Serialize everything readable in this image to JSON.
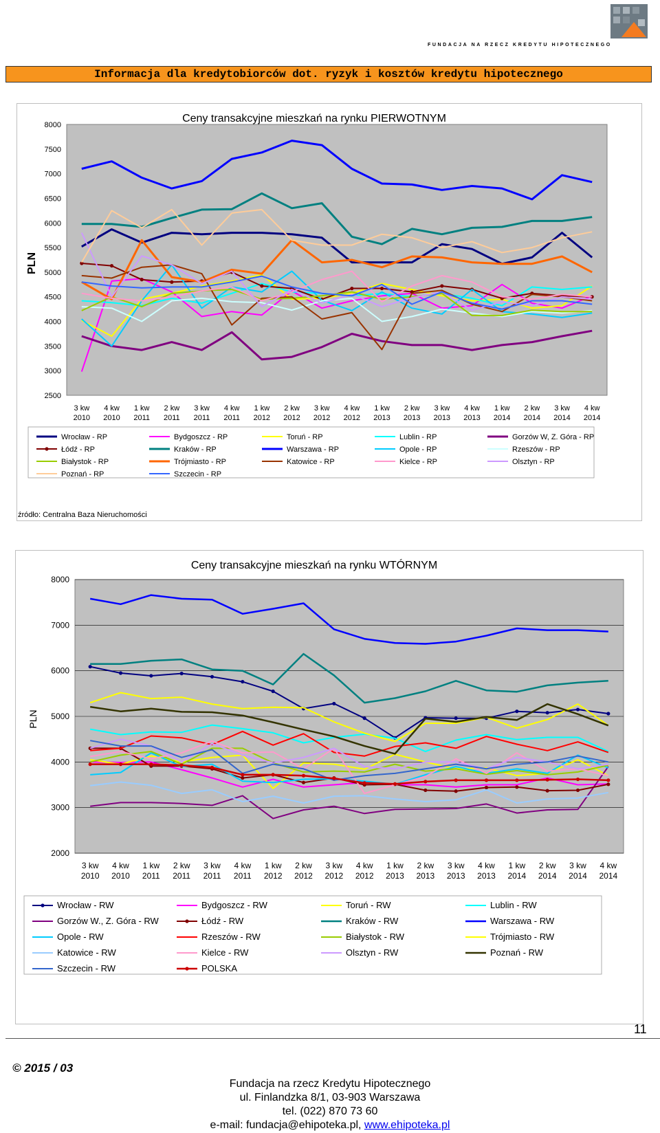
{
  "header": {
    "logo_text": "FUNDACJA NA RZECZ KREDYTU HIPOTECZNEGO",
    "banner": "Informacja dla kredytobiorców dot. ryzyk i kosztów kredytu hipotecznego"
  },
  "source_note": "źródło: Centralna Baza Nieruchomości",
  "page_number": "11",
  "footer": {
    "copyright": "© 2015 / 03",
    "org": "Fundacja na rzecz Kredytu Hipotecznego",
    "address": "ul. Finlandzka 8/1, 03-903 Warszawa",
    "phone": "tel. (022) 870 73 60",
    "email_prefix": "e-mail: fundacja@ehipoteka.pl, ",
    "website": "www.ehipoteka.pl"
  },
  "chart_data": [
    {
      "type": "line",
      "title": "Ceny transakcyjne mieszkań na rynku PIERWOTNYM",
      "ylabel": "PLN",
      "ylim": [
        2500,
        8000
      ],
      "yticks": [
        2500,
        3000,
        3500,
        4000,
        4500,
        5000,
        5500,
        6000,
        6500,
        7000,
        7500,
        8000
      ],
      "categories": [
        "3 kw 2010",
        "4 kw 2010",
        "1 kw 2011",
        "2 kw 2011",
        "3 kw 2011",
        "4 kw 2011",
        "1 kw 2012",
        "2 kw 2012",
        "3 kw 2012",
        "4 kw 2012",
        "1 kw 2013",
        "2 kw 2013",
        "3 kw 2013",
        "4 kw 2013",
        "1 kw 2014",
        "2 kw 2014",
        "3 kw 2014",
        "4 kw 2014"
      ],
      "series": [
        {
          "name": "Wrocław - RP",
          "color": "#000080",
          "values": [
            5520,
            5870,
            5600,
            5800,
            5770,
            5800,
            5800,
            5770,
            5700,
            5200,
            5200,
            5200,
            5570,
            5470,
            5170,
            5300,
            5800,
            5300
          ]
        },
        {
          "name": "Bydgoszcz - RP",
          "color": "#ff00ff",
          "values": [
            2980,
            4820,
            4870,
            4600,
            4100,
            4200,
            4130,
            4620,
            4270,
            4420,
            4520,
            4570,
            4270,
            4320,
            4750,
            4370,
            4270,
            4520
          ]
        },
        {
          "name": "Toruń - RP",
          "color": "#ffff00",
          "values": [
            4020,
            3700,
            4450,
            4570,
            4720,
            4820,
            4950,
            4450,
            4470,
            4570,
            4770,
            4650,
            4520,
            4420,
            4450,
            4270,
            4320,
            4720
          ]
        },
        {
          "name": "Lublin - RP",
          "color": "#00ffff",
          "values": [
            4420,
            4380,
            4320,
            4470,
            4370,
            4570,
            4770,
            4600,
            4570,
            4520,
            4570,
            4500,
            4570,
            4470,
            4320,
            4700,
            4650,
            4700
          ]
        },
        {
          "name": "Gorzów W, Z. Góra - RP",
          "color": "#800080",
          "values": [
            3700,
            3500,
            3420,
            3580,
            3420,
            3780,
            3230,
            3280,
            3480,
            3750,
            3600,
            3520,
            3520,
            3420,
            3520,
            3580,
            3700,
            3810
          ]
        },
        {
          "name": "Łódź - RP",
          "color": "#800000",
          "values": [
            5180,
            5130,
            4850,
            4800,
            4820,
            5000,
            4720,
            4670,
            4450,
            4670,
            4670,
            4600,
            4720,
            4650,
            4470,
            4570,
            4520,
            4500
          ]
        },
        {
          "name": "Kraków - RP",
          "color": "#008080",
          "values": [
            5980,
            5980,
            5920,
            6100,
            6270,
            6280,
            6600,
            6300,
            6400,
            5720,
            5570,
            5880,
            5770,
            5900,
            5920,
            6040,
            6040,
            6120
          ]
        },
        {
          "name": "Warszawa - RP",
          "color": "#0000ff",
          "values": [
            7100,
            7250,
            6920,
            6700,
            6850,
            7300,
            7430,
            7670,
            7580,
            7100,
            6800,
            6780,
            6670,
            6750,
            6700,
            6480,
            6970,
            6830
          ]
        },
        {
          "name": "Opole - RP",
          "color": "#00ccff",
          "values": [
            4050,
            3500,
            4420,
            5150,
            4270,
            4700,
            4600,
            5020,
            4430,
            4220,
            4600,
            4270,
            4150,
            4650,
            4200,
            4150,
            4080,
            4170
          ]
        },
        {
          "name": "Rzeszów - RP",
          "color": "#ccffff",
          "values": [
            4300,
            4270,
            4000,
            4420,
            4470,
            4400,
            4380,
            4230,
            4420,
            4470,
            4000,
            4100,
            4250,
            4170,
            4100,
            4200,
            4170,
            4220
          ]
        },
        {
          "name": "Białystok - RP",
          "color": "#99cc00",
          "values": [
            4220,
            4500,
            4300,
            4570,
            4620,
            4650,
            4450,
            4470,
            4520,
            4600,
            4450,
            4500,
            4570,
            4120,
            4120,
            4230,
            4200,
            4200
          ]
        },
        {
          "name": "Trójmiasto - RP",
          "color": "#ff6600",
          "values": [
            4800,
            4450,
            5650,
            4900,
            4800,
            5050,
            4970,
            5650,
            5200,
            5250,
            5100,
            5320,
            5300,
            5200,
            5170,
            5170,
            5320,
            5000
          ]
        },
        {
          "name": "Katowice - RP",
          "color": "#993300",
          "values": [
            4930,
            4880,
            5100,
            5150,
            4970,
            3930,
            4470,
            4500,
            4050,
            4180,
            3430,
            4570,
            4630,
            4350,
            4200,
            4550,
            4500,
            4420
          ]
        },
        {
          "name": "Kielce - RP",
          "color": "#ff99cc",
          "values": [
            4570,
            4470,
            4420,
            4500,
            4620,
            4700,
            4420,
            4600,
            4850,
            5020,
            4400,
            4720,
            4930,
            4800,
            4500,
            4450,
            4550,
            4500
          ]
        },
        {
          "name": "Olsztyn - RP",
          "color": "#cc99ff",
          "values": [
            5800,
            4500,
            5330,
            5150,
            4770,
            5020,
            4300,
            4650,
            4370,
            4550,
            4300,
            4480,
            4600,
            4230,
            4400,
            4320,
            4500,
            4450
          ]
        },
        {
          "name": "Poznań - RP",
          "color": "#ffcc99",
          "values": [
            5200,
            6250,
            5900,
            6270,
            5550,
            6200,
            6270,
            5650,
            5550,
            5550,
            5770,
            5700,
            5500,
            5620,
            5400,
            5500,
            5700,
            5820
          ]
        },
        {
          "name": "Szczecin - RP",
          "color": "#3366ff",
          "values": [
            4800,
            4720,
            4680,
            4700,
            4700,
            4800,
            4920,
            4700,
            4570,
            4520,
            4750,
            4350,
            4600,
            4370,
            4250,
            4420,
            4420,
            4350
          ]
        }
      ]
    },
    {
      "type": "line",
      "title": "Ceny transakcyjne mieszkań na rynku WTÓRNYM",
      "ylabel": "PLN",
      "ylim": [
        2000,
        8000
      ],
      "yticks": [
        2000,
        3000,
        4000,
        5000,
        6000,
        7000,
        8000
      ],
      "categories": [
        "3 kw 2010",
        "4 kw 2010",
        "1 kw 2011",
        "2 kw 2011",
        "3 kw 2011",
        "4 kw 2011",
        "1 kw 2012",
        "2 kw 2012",
        "3 kw 2012",
        "4 kw 2012",
        "1 kw 2013",
        "2 kw 2013",
        "3 kw 2013",
        "4 kw 2013",
        "1 kw 2014",
        "2 kw 2014",
        "3 kw 2014",
        "4 kw 2014"
      ],
      "series": [
        {
          "name": "Wrocław - RW",
          "color": "#000080",
          "values": [
            6090,
            5950,
            5890,
            5940,
            5870,
            5760,
            5550,
            5170,
            5280,
            4960,
            4530,
            4970,
            4960,
            4960,
            5110,
            5080,
            5150,
            5060
          ]
        },
        {
          "name": "Bydgoszcz - RW",
          "color": "#ff00ff",
          "values": [
            4000,
            3990,
            4000,
            3830,
            3650,
            3450,
            3620,
            3450,
            3500,
            3550,
            3500,
            3500,
            3450,
            3500,
            3500,
            3650,
            3500,
            3520
          ]
        },
        {
          "name": "Toruń - RW",
          "color": "#ffff00",
          "values": [
            4050,
            3950,
            4130,
            4000,
            4100,
            4150,
            3420,
            3980,
            3950,
            3840,
            4170,
            4000,
            3850,
            3870,
            3700,
            3750,
            4050,
            3700
          ]
        },
        {
          "name": "Lublin - RW",
          "color": "#00ffff",
          "values": [
            4720,
            4600,
            4660,
            4650,
            4810,
            4730,
            4640,
            4420,
            4540,
            4610,
            4520,
            4230,
            4480,
            4600,
            4490,
            4540,
            4540,
            4230
          ]
        },
        {
          "name": "Gorzów W., Z. Góra - RW",
          "color": "#800080",
          "values": [
            3030,
            3110,
            3110,
            3090,
            3050,
            3260,
            2760,
            2950,
            3030,
            2870,
            2960,
            2970,
            2980,
            3080,
            2880,
            2950,
            2960,
            3900
          ]
        },
        {
          "name": "Łódź - RW",
          "color": "#800000",
          "values": [
            4300,
            4300,
            3910,
            3910,
            3850,
            3650,
            3720,
            3550,
            3650,
            3500,
            3510,
            3380,
            3360,
            3440,
            3450,
            3370,
            3380,
            3510
          ]
        },
        {
          "name": "Kraków - RW",
          "color": "#008080",
          "values": [
            6150,
            6150,
            6220,
            6250,
            6030,
            6000,
            5700,
            6370,
            5900,
            5300,
            5400,
            5550,
            5780,
            5570,
            5540,
            5680,
            5740,
            5780
          ]
        },
        {
          "name": "Warszawa - RW",
          "color": "#0000ff",
          "values": [
            7580,
            7460,
            7660,
            7580,
            7560,
            7250,
            7360,
            7480,
            6910,
            6700,
            6610,
            6590,
            6640,
            6770,
            6930,
            6890,
            6890,
            6860
          ]
        },
        {
          "name": "Opole - RW",
          "color": "#00ccff",
          "values": [
            3720,
            3770,
            4200,
            3900,
            3950,
            3580,
            3550,
            3620,
            3630,
            3580,
            3510,
            3720,
            3900,
            3750,
            3850,
            3750,
            4150,
            3870
          ]
        },
        {
          "name": "Rzeszów - RW",
          "color": "#ff0000",
          "values": [
            4250,
            4300,
            4570,
            4530,
            4380,
            4670,
            4370,
            4620,
            4210,
            4130,
            4340,
            4420,
            4300,
            4560,
            4390,
            4250,
            4440,
            4210
          ]
        },
        {
          "name": "Białystok - RW",
          "color": "#99cc00",
          "values": [
            4000,
            4150,
            4230,
            3950,
            4300,
            4300,
            3980,
            3780,
            3800,
            3780,
            3950,
            3800,
            3850,
            3730,
            3810,
            3720,
            3780,
            3930
          ]
        },
        {
          "name": "Trójmiasto - RW",
          "color": "#ffff00",
          "values": [
            5300,
            5520,
            5390,
            5420,
            5270,
            5170,
            5200,
            5190,
            4880,
            4630,
            4450,
            4850,
            4850,
            4980,
            4740,
            4930,
            5270,
            4800
          ]
        },
        {
          "name": "Katowice - RW",
          "color": "#99ccff",
          "values": [
            3480,
            3560,
            3490,
            3310,
            3390,
            3130,
            3250,
            3100,
            3250,
            3260,
            3190,
            3130,
            3170,
            3390,
            3100,
            3190,
            3210,
            3330
          ]
        },
        {
          "name": "Kielce - RW",
          "color": "#ff99cc",
          "values": [
            4120,
            4230,
            4070,
            4200,
            4460,
            4200,
            4220,
            3850,
            4300,
            3310,
            3500,
            3680,
            4070,
            3750,
            4200,
            3800,
            3850,
            3700
          ]
        },
        {
          "name": "Olsztyn - RW",
          "color": "#cc99ff",
          "values": [
            4300,
            4500,
            4350,
            4000,
            4400,
            4150,
            3980,
            4100,
            4300,
            3900,
            3850,
            4000,
            4000,
            3850,
            4100,
            4000,
            3850,
            3950
          ]
        },
        {
          "name": "Poznań - RW",
          "color": "#333300",
          "values": [
            5210,
            5110,
            5170,
            5100,
            5090,
            5020,
            4870,
            4710,
            4560,
            4350,
            4180,
            4950,
            4880,
            4990,
            4920,
            5270,
            5050,
            4800
          ]
        },
        {
          "name": "Szczecin - RW",
          "color": "#3366cc",
          "values": [
            4470,
            4350,
            4350,
            4100,
            4270,
            3750,
            3950,
            3850,
            3600,
            3700,
            3750,
            3850,
            3950,
            3850,
            3950,
            4000,
            4130,
            4000
          ]
        },
        {
          "name": "POLSKA",
          "color": "#cc0000",
          "values": [
            3950,
            3950,
            3950,
            3930,
            3880,
            3720,
            3720,
            3700,
            3640,
            3540,
            3520,
            3570,
            3600,
            3600,
            3600,
            3610,
            3620,
            3600
          ]
        }
      ]
    }
  ]
}
